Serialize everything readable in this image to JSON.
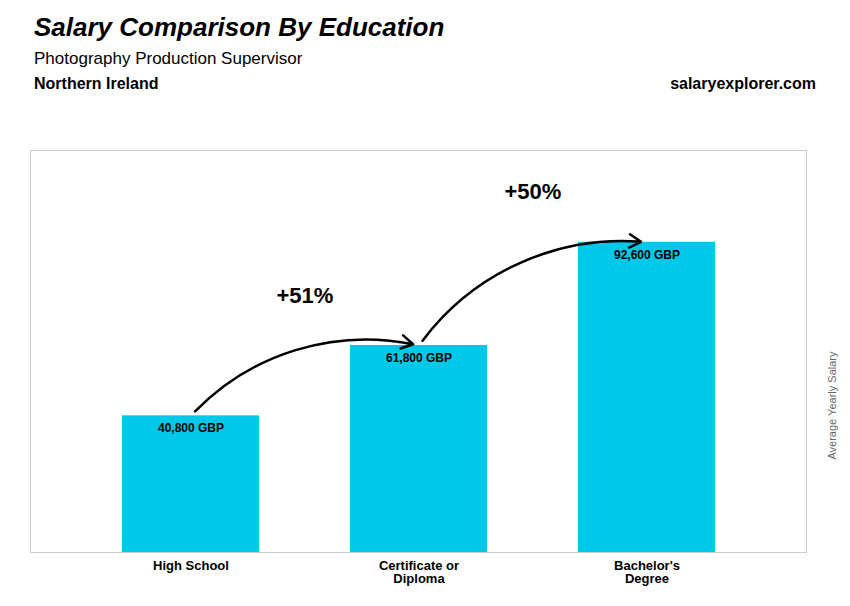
{
  "chart_data": {
    "type": "bar",
    "title": "Salary Comparison By Education",
    "subtitle": "Photography Production Supervisor",
    "ylabel": "Average Yearly Salary",
    "categories": [
      "High School",
      "Certificate or\nDiploma",
      "Bachelor's\nDegree"
    ],
    "values": [
      40800,
      61800,
      92600
    ],
    "value_labels": [
      "40,800 GBP",
      "61,800 GBP",
      "92,600 GBP"
    ],
    "data_labels": true,
    "color": "#00c8e8",
    "ylim": [
      0,
      120000
    ],
    "tick_labels": "x",
    "annotations": [
      {
        "text": "Northern Ireland"
      },
      {
        "text": "salaryexplorer.com"
      },
      {
        "text": "+51%",
        "from": "High School",
        "to": "Certificate or\nDiploma"
      },
      {
        "text": "+50%",
        "from": "Certificate or\nDiploma",
        "to": "Bachelor's\nDegree"
      }
    ]
  }
}
